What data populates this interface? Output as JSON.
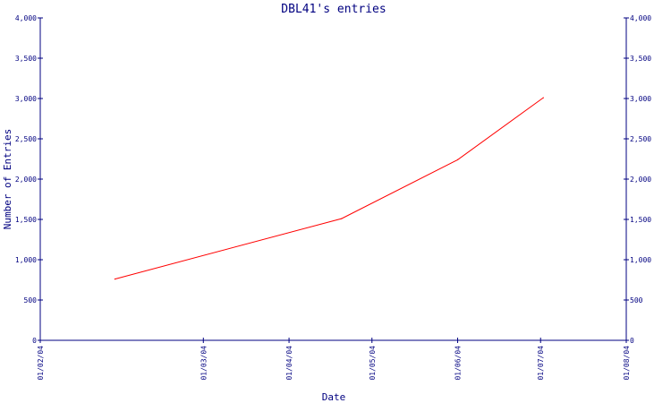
{
  "chart_data": {
    "type": "line",
    "title": "DBL41's entries",
    "xlabel": "Date",
    "ylabel": "Number of Entries",
    "x_ticks": [
      "01/02/04",
      "01/03/04",
      "01/04/04",
      "01/05/04",
      "01/06/04",
      "01/07/04",
      "01/08/04"
    ],
    "y_ticks": [
      "0",
      "500",
      "1,000",
      "1,500",
      "2,000",
      "2,500",
      "3,000",
      "3,500",
      "4,000"
    ],
    "ylim": [
      0,
      4000
    ],
    "xlim": [
      "2004-01-02",
      "2004-08-01"
    ],
    "grid": false,
    "legend": "none",
    "series": [
      {
        "color": "#ff0000",
        "points": [
          {
            "date": "2004-01-29",
            "value": 760
          },
          {
            "date": "2004-04-20",
            "value": 1510
          },
          {
            "date": "2004-06-01",
            "value": 2240
          },
          {
            "date": "2004-07-02",
            "value": 3010
          }
        ]
      }
    ],
    "axis_color": "#000080"
  }
}
